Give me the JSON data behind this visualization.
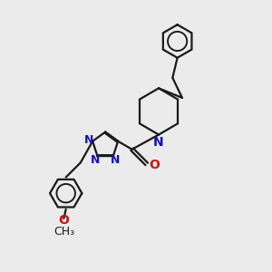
{
  "bg_color": "#ebebeb",
  "line_color": "#1a1a1a",
  "N_color": "#1111bb",
  "O_color": "#cc1111",
  "bond_lw": 1.6,
  "font_size": 10,
  "figsize": [
    3.0,
    3.0
  ],
  "dpi": 100,
  "xlim": [
    0,
    10
  ],
  "ylim": [
    0,
    10
  ]
}
